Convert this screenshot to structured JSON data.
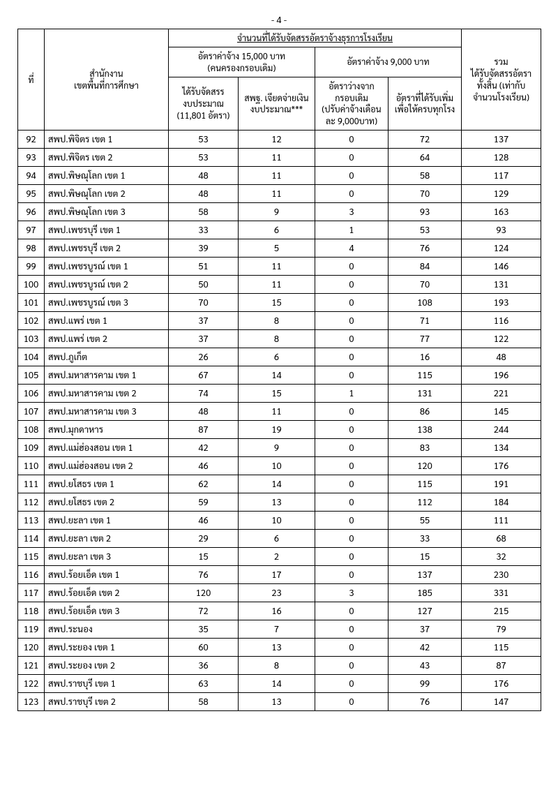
{
  "page_number": "- 4 -",
  "headers": {
    "seq": "ที่",
    "office": "สำนักงาน\nเขตพื้นที่การศึกษา",
    "main_group": "จำนวนที่ได้รับจัดสรรอัตราจ้างธุรการโรงเรียน",
    "rate15000": "อัตราค่าจ้าง 15,000 บาท\n(คนครองกรอบเดิม)",
    "rate9000": "อัตราค่าจ้าง 9,000 บาท",
    "c1": "ได้รับจัดสรร\nงบประมาณ\n(11,801 อัตรา)",
    "c2": "สพฐ. เจียดจ่ายเงิน\nงบประมาณ***",
    "c3": "อัตราว่างจาก\nกรอบเดิม\n(ปรับค่าจ้างเดือน\nละ 9,000บาท)",
    "c4": "อัตราที่ได้รับเพิ่ม\nเพื่อให้ครบทุกโรง",
    "total": "รวม\nได้รับจัดสรรอัตรา\nทั้งสิ้น (เท่ากับ\nจำนวนโรงเรียน)"
  },
  "rows": [
    {
      "n": "92",
      "name": "สพป.พิจิตร เขต 1",
      "c1": "53",
      "c2": "12",
      "c3": "0",
      "c4": "72",
      "t": "137"
    },
    {
      "n": "93",
      "name": "สพป.พิจิตร เขต 2",
      "c1": "53",
      "c2": "11",
      "c3": "0",
      "c4": "64",
      "t": "128"
    },
    {
      "n": "94",
      "name": "สพป.พิษณุโลก เขต 1",
      "c1": "48",
      "c2": "11",
      "c3": "0",
      "c4": "58",
      "t": "117"
    },
    {
      "n": "95",
      "name": "สพป.พิษณุโลก เขต 2",
      "c1": "48",
      "c2": "11",
      "c3": "0",
      "c4": "70",
      "t": "129"
    },
    {
      "n": "96",
      "name": "สพป.พิษณุโลก เขต 3",
      "c1": "58",
      "c2": "9",
      "c3": "3",
      "c4": "93",
      "t": "163"
    },
    {
      "n": "97",
      "name": "สพป.เพชรบุรี เขต 1",
      "c1": "33",
      "c2": "6",
      "c3": "1",
      "c4": "53",
      "t": "93"
    },
    {
      "n": "98",
      "name": "สพป.เพชรบุรี เขต 2",
      "c1": "39",
      "c2": "5",
      "c3": "4",
      "c4": "76",
      "t": "124"
    },
    {
      "n": "99",
      "name": "สพป.เพชรบูรณ์ เขต 1",
      "c1": "51",
      "c2": "11",
      "c3": "0",
      "c4": "84",
      "t": "146"
    },
    {
      "n": "100",
      "name": "สพป.เพชรบูรณ์ เขต 2",
      "c1": "50",
      "c2": "11",
      "c3": "0",
      "c4": "70",
      "t": "131"
    },
    {
      "n": "101",
      "name": "สพป.เพชรบูรณ์ เขต 3",
      "c1": "70",
      "c2": "15",
      "c3": "0",
      "c4": "108",
      "t": "193"
    },
    {
      "n": "102",
      "name": "สพป.แพร่ เขต 1",
      "c1": "37",
      "c2": "8",
      "c3": "0",
      "c4": "71",
      "t": "116"
    },
    {
      "n": "103",
      "name": "สพป.แพร่ เขต 2",
      "c1": "37",
      "c2": "8",
      "c3": "0",
      "c4": "77",
      "t": "122"
    },
    {
      "n": "104",
      "name": "สพป.ภูเก็ต",
      "c1": "26",
      "c2": "6",
      "c3": "0",
      "c4": "16",
      "t": "48"
    },
    {
      "n": "105",
      "name": "สพป.มหาสารคาม เขต 1",
      "c1": "67",
      "c2": "14",
      "c3": "0",
      "c4": "115",
      "t": "196"
    },
    {
      "n": "106",
      "name": "สพป.มหาสารคาม เขต 2",
      "c1": "74",
      "c2": "15",
      "c3": "1",
      "c4": "131",
      "t": "221"
    },
    {
      "n": "107",
      "name": "สพป.มหาสารคาม เขต 3",
      "c1": "48",
      "c2": "11",
      "c3": "0",
      "c4": "86",
      "t": "145"
    },
    {
      "n": "108",
      "name": "สพป.มุกดาหาร",
      "c1": "87",
      "c2": "19",
      "c3": "0",
      "c4": "138",
      "t": "244"
    },
    {
      "n": "109",
      "name": "สพป.แม่ฮ่องสอน เขต 1",
      "c1": "42",
      "c2": "9",
      "c3": "0",
      "c4": "83",
      "t": "134"
    },
    {
      "n": "110",
      "name": "สพป.แม่ฮ่องสอน เขต 2",
      "c1": "46",
      "c2": "10",
      "c3": "0",
      "c4": "120",
      "t": "176"
    },
    {
      "n": "111",
      "name": "สพป.ยโสธร เขต 1",
      "c1": "62",
      "c2": "14",
      "c3": "0",
      "c4": "115",
      "t": "191"
    },
    {
      "n": "112",
      "name": "สพป.ยโสธร เขต 2",
      "c1": "59",
      "c2": "13",
      "c3": "0",
      "c4": "112",
      "t": "184"
    },
    {
      "n": "113",
      "name": "สพป.ยะลา เขต 1",
      "c1": "46",
      "c2": "10",
      "c3": "0",
      "c4": "55",
      "t": "111"
    },
    {
      "n": "114",
      "name": "สพป.ยะลา เขต 2",
      "c1": "29",
      "c2": "6",
      "c3": "0",
      "c4": "33",
      "t": "68"
    },
    {
      "n": "115",
      "name": "สพป.ยะลา เขต 3",
      "c1": "15",
      "c2": "2",
      "c3": "0",
      "c4": "15",
      "t": "32"
    },
    {
      "n": "116",
      "name": "สพป.ร้อยเอ็ด เขต 1",
      "c1": "76",
      "c2": "17",
      "c3": "0",
      "c4": "137",
      "t": "230"
    },
    {
      "n": "117",
      "name": "สพป.ร้อยเอ็ด เขต 2",
      "c1": "120",
      "c2": "23",
      "c3": "3",
      "c4": "185",
      "t": "331"
    },
    {
      "n": "118",
      "name": "สพป.ร้อยเอ็ด เขต 3",
      "c1": "72",
      "c2": "16",
      "c3": "0",
      "c4": "127",
      "t": "215"
    },
    {
      "n": "119",
      "name": "สพป.ระนอง",
      "c1": "35",
      "c2": "7",
      "c3": "0",
      "c4": "37",
      "t": "79"
    },
    {
      "n": "120",
      "name": "สพป.ระยอง เขต 1",
      "c1": "60",
      "c2": "13",
      "c3": "0",
      "c4": "42",
      "t": "115"
    },
    {
      "n": "121",
      "name": "สพป.ระยอง เขต 2",
      "c1": "36",
      "c2": "8",
      "c3": "0",
      "c4": "43",
      "t": "87"
    },
    {
      "n": "122",
      "name": "สพป.ราชบุรี เขต 1",
      "c1": "63",
      "c2": "14",
      "c3": "0",
      "c4": "99",
      "t": "176"
    },
    {
      "n": "123",
      "name": "สพป.ราชบุรี เขต 2",
      "c1": "58",
      "c2": "13",
      "c3": "0",
      "c4": "76",
      "t": "147"
    }
  ]
}
